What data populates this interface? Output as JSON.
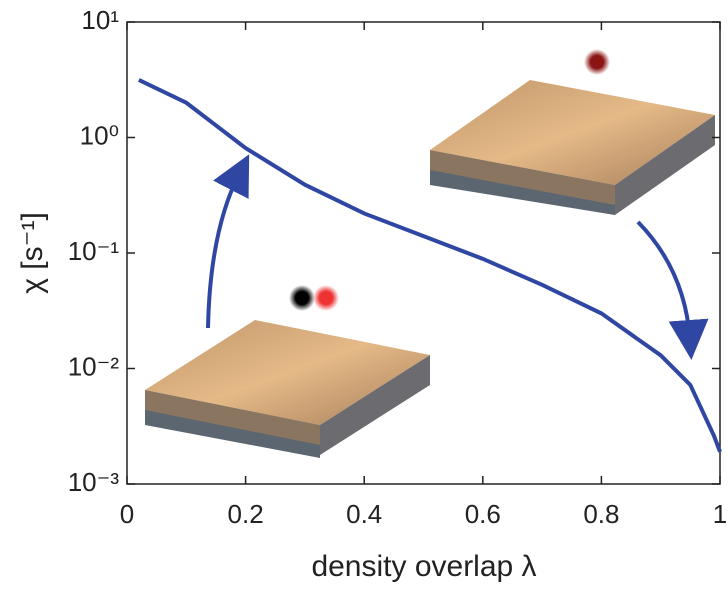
{
  "chart_data": {
    "type": "line",
    "xlabel": "density overlap λ",
    "ylabel": "χ [s⁻¹]",
    "x": [
      0.02,
      0.1,
      0.2,
      0.3,
      0.4,
      0.5,
      0.6,
      0.7,
      0.8,
      0.9,
      0.95,
      0.99,
      1.0
    ],
    "series": [
      {
        "color": "#2f47a3",
        "values": [
          3.15,
          2.0,
          0.81,
          0.39,
          0.22,
          0.14,
          0.089,
          0.053,
          0.03,
          0.013,
          0.0072,
          0.0026,
          0.0019
        ]
      }
    ],
    "xlim": [
      0,
      1
    ],
    "xticks": [
      0,
      0.2,
      0.4,
      0.6,
      0.8,
      1
    ],
    "ylim": [
      0.001,
      10
    ],
    "yscale": "log",
    "yticks": [
      {
        "value": 0.001,
        "label": "10⁻³"
      },
      {
        "value": 0.01,
        "label": "10⁻²"
      },
      {
        "value": 0.1,
        "label": "10⁻¹"
      },
      {
        "value": 1,
        "label": "10⁰"
      },
      {
        "value": 10,
        "label": "10¹"
      }
    ]
  }
}
